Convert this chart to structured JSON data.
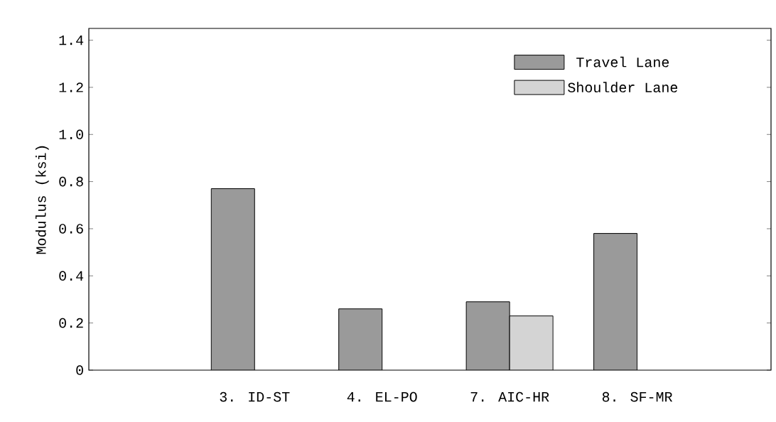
{
  "chart_data": {
    "type": "bar",
    "ylabel": "Modulus (ksi)",
    "categories": [
      "3. ID-ST",
      "4. EL-PO",
      "7. AIC-HR",
      "8. SF-MR"
    ],
    "series": [
      {
        "name": "Travel Lane",
        "color": "#9a9a9a",
        "values": [
          0.77,
          0.26,
          0.29,
          0.58
        ]
      },
      {
        "name": "Shoulder Lane",
        "color": "#d4d4d4",
        "values": [
          null,
          null,
          0.23,
          null
        ]
      }
    ],
    "ylim": [
      0,
      1.45
    ],
    "yticks": [
      0,
      0.2,
      0.4,
      0.6,
      0.8,
      {
        "value": 1,
        "label": "1.0"
      },
      1.2,
      1.4
    ],
    "legend": "top right"
  }
}
